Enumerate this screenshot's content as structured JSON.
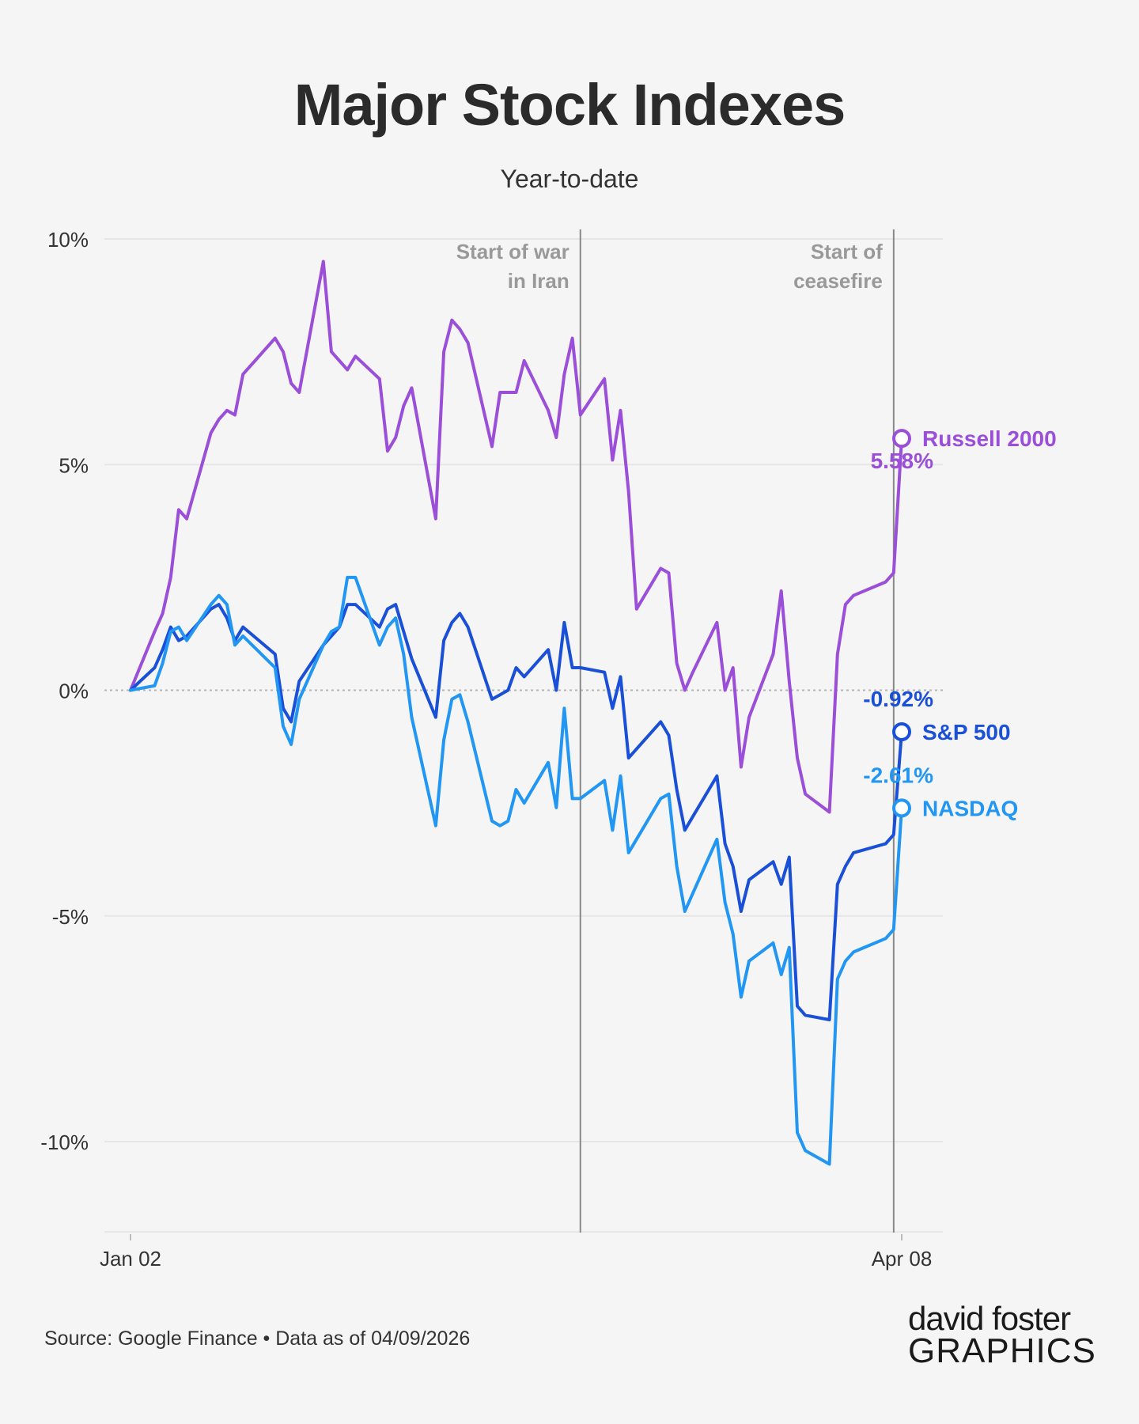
{
  "title": "Major Stock Indexes",
  "subtitle": "Year-to-date",
  "source": "Source: Google Finance • Data as of 04/09/2026",
  "logo": {
    "line1": "david foster",
    "line2": "GRAPHICS"
  },
  "colors": {
    "russell": "#9b4fd9",
    "sp500": "#1a4fd8",
    "nasdaq": "#2196f3",
    "annotation": "#888888",
    "grid": "#e6e6e6"
  },
  "chart_data": {
    "type": "line",
    "title": "Major Stock Indexes",
    "subtitle": "Year-to-date",
    "y_unit": "%",
    "ylim": [
      -12,
      10
    ],
    "y_ticks": [
      {
        "value": 10,
        "label": "10%"
      },
      {
        "value": 5,
        "label": "5%"
      },
      {
        "value": 0,
        "label": "0%"
      },
      {
        "value": -5,
        "label": "-5%"
      },
      {
        "value": -10,
        "label": "-10%"
      }
    ],
    "x_tick_labels": [
      {
        "date": "2026-01-02",
        "label": "Jan 02"
      },
      {
        "date": "2026-04-08",
        "label": "Apr 08"
      }
    ],
    "xlim": [
      "2026-01-02",
      "2026-04-08"
    ],
    "annotations": [
      {
        "date": "2026-02-27",
        "label_lines": [
          "Start of war",
          "in Iran"
        ]
      },
      {
        "date": "2026-04-07",
        "label_lines": [
          "Start of",
          "ceasefire"
        ]
      }
    ],
    "series": [
      {
        "name": "Russell 2000",
        "color": "#9b4fd9",
        "end_label": "5.58%",
        "points": [
          [
            "2026-01-02",
            0.0
          ],
          [
            "2026-01-05",
            1.3
          ],
          [
            "2026-01-06",
            1.7
          ],
          [
            "2026-01-07",
            2.5
          ],
          [
            "2026-01-08",
            4.0
          ],
          [
            "2026-01-09",
            3.8
          ],
          [
            "2026-01-12",
            5.7
          ],
          [
            "2026-01-13",
            6.0
          ],
          [
            "2026-01-14",
            6.2
          ],
          [
            "2026-01-15",
            6.1
          ],
          [
            "2026-01-16",
            7.0
          ],
          [
            "2026-01-20",
            7.8
          ],
          [
            "2026-01-21",
            7.5
          ],
          [
            "2026-01-22",
            6.8
          ],
          [
            "2026-01-23",
            6.6
          ],
          [
            "2026-01-26",
            9.5
          ],
          [
            "2026-01-27",
            7.5
          ],
          [
            "2026-01-28",
            7.3
          ],
          [
            "2026-01-29",
            7.1
          ],
          [
            "2026-01-30",
            7.4
          ],
          [
            "2026-02-02",
            6.9
          ],
          [
            "2026-02-03",
            5.3
          ],
          [
            "2026-02-04",
            5.6
          ],
          [
            "2026-02-05",
            6.3
          ],
          [
            "2026-02-06",
            6.7
          ],
          [
            "2026-02-09",
            3.8
          ],
          [
            "2026-02-10",
            7.5
          ],
          [
            "2026-02-11",
            8.2
          ],
          [
            "2026-02-12",
            8.0
          ],
          [
            "2026-02-13",
            7.7
          ],
          [
            "2026-02-16",
            5.4
          ],
          [
            "2026-02-17",
            6.6
          ],
          [
            "2026-02-18",
            6.6
          ],
          [
            "2026-02-19",
            6.6
          ],
          [
            "2026-02-20",
            7.3
          ],
          [
            "2026-02-23",
            6.2
          ],
          [
            "2026-02-24",
            5.6
          ],
          [
            "2026-02-25",
            7.0
          ],
          [
            "2026-02-26",
            7.8
          ],
          [
            "2026-02-27",
            6.1
          ],
          [
            "2026-03-02",
            6.9
          ],
          [
            "2026-03-03",
            5.1
          ],
          [
            "2026-03-04",
            6.2
          ],
          [
            "2026-03-05",
            4.4
          ],
          [
            "2026-03-06",
            1.8
          ],
          [
            "2026-03-09",
            2.7
          ],
          [
            "2026-03-10",
            2.6
          ],
          [
            "2026-03-11",
            0.6
          ],
          [
            "2026-03-12",
            0.0
          ],
          [
            "2026-03-13",
            0.4
          ],
          [
            "2026-03-16",
            1.5
          ],
          [
            "2026-03-17",
            0.0
          ],
          [
            "2026-03-18",
            0.5
          ],
          [
            "2026-03-19",
            -1.7
          ],
          [
            "2026-03-20",
            -0.6
          ],
          [
            "2026-03-23",
            0.8
          ],
          [
            "2026-03-24",
            2.2
          ],
          [
            "2026-03-25",
            0.2
          ],
          [
            "2026-03-26",
            -1.5
          ],
          [
            "2026-03-27",
            -2.3
          ],
          [
            "2026-03-30",
            -2.7
          ],
          [
            "2026-03-31",
            0.8
          ],
          [
            "2026-04-01",
            1.9
          ],
          [
            "2026-04-02",
            2.1
          ],
          [
            "2026-04-06",
            2.4
          ],
          [
            "2026-04-07",
            2.6
          ],
          [
            "2026-04-08",
            5.58
          ]
        ]
      },
      {
        "name": "S&P 500",
        "color": "#1a4fd8",
        "end_label": "-0.92%",
        "points": [
          [
            "2026-01-02",
            0.0
          ],
          [
            "2026-01-05",
            0.5
          ],
          [
            "2026-01-06",
            0.9
          ],
          [
            "2026-01-07",
            1.4
          ],
          [
            "2026-01-08",
            1.1
          ],
          [
            "2026-01-09",
            1.2
          ],
          [
            "2026-01-12",
            1.8
          ],
          [
            "2026-01-13",
            1.9
          ],
          [
            "2026-01-14",
            1.6
          ],
          [
            "2026-01-15",
            1.1
          ],
          [
            "2026-01-16",
            1.4
          ],
          [
            "2026-01-20",
            0.8
          ],
          [
            "2026-01-21",
            -0.4
          ],
          [
            "2026-01-22",
            -0.7
          ],
          [
            "2026-01-23",
            0.2
          ],
          [
            "2026-01-26",
            1.0
          ],
          [
            "2026-01-27",
            1.2
          ],
          [
            "2026-01-28",
            1.4
          ],
          [
            "2026-01-29",
            1.9
          ],
          [
            "2026-01-30",
            1.9
          ],
          [
            "2026-02-02",
            1.4
          ],
          [
            "2026-02-03",
            1.8
          ],
          [
            "2026-02-04",
            1.9
          ],
          [
            "2026-02-05",
            1.3
          ],
          [
            "2026-02-06",
            0.7
          ],
          [
            "2026-02-09",
            -0.6
          ],
          [
            "2026-02-10",
            1.1
          ],
          [
            "2026-02-11",
            1.5
          ],
          [
            "2026-02-12",
            1.7
          ],
          [
            "2026-02-13",
            1.4
          ],
          [
            "2026-02-16",
            -0.2
          ],
          [
            "2026-02-17",
            -0.1
          ],
          [
            "2026-02-18",
            0.0
          ],
          [
            "2026-02-19",
            0.5
          ],
          [
            "2026-02-20",
            0.3
          ],
          [
            "2026-02-23",
            0.9
          ],
          [
            "2026-02-24",
            0.0
          ],
          [
            "2026-02-25",
            1.5
          ],
          [
            "2026-02-26",
            0.5
          ],
          [
            "2026-02-27",
            0.5
          ],
          [
            "2026-03-02",
            0.4
          ],
          [
            "2026-03-03",
            -0.4
          ],
          [
            "2026-03-04",
            0.3
          ],
          [
            "2026-03-05",
            -1.5
          ],
          [
            "2026-03-06",
            -1.3
          ],
          [
            "2026-03-09",
            -0.7
          ],
          [
            "2026-03-10",
            -1.0
          ],
          [
            "2026-03-11",
            -2.2
          ],
          [
            "2026-03-12",
            -3.1
          ],
          [
            "2026-03-13",
            -2.8
          ],
          [
            "2026-03-16",
            -1.9
          ],
          [
            "2026-03-17",
            -3.4
          ],
          [
            "2026-03-18",
            -3.9
          ],
          [
            "2026-03-19",
            -4.9
          ],
          [
            "2026-03-20",
            -4.2
          ],
          [
            "2026-03-23",
            -3.8
          ],
          [
            "2026-03-24",
            -4.3
          ],
          [
            "2026-03-25",
            -3.7
          ],
          [
            "2026-03-26",
            -7.0
          ],
          [
            "2026-03-27",
            -7.2
          ],
          [
            "2026-03-30",
            -7.3
          ],
          [
            "2026-03-31",
            -4.3
          ],
          [
            "2026-04-01",
            -3.9
          ],
          [
            "2026-04-02",
            -3.6
          ],
          [
            "2026-04-06",
            -3.4
          ],
          [
            "2026-04-07",
            -3.2
          ],
          [
            "2026-04-08",
            -0.92
          ]
        ]
      },
      {
        "name": "NASDAQ",
        "color": "#2196f3",
        "end_label": "-2.61%",
        "points": [
          [
            "2026-01-02",
            0.0
          ],
          [
            "2026-01-05",
            0.1
          ],
          [
            "2026-01-06",
            0.6
          ],
          [
            "2026-01-07",
            1.3
          ],
          [
            "2026-01-08",
            1.4
          ],
          [
            "2026-01-09",
            1.1
          ],
          [
            "2026-01-12",
            1.9
          ],
          [
            "2026-01-13",
            2.1
          ],
          [
            "2026-01-14",
            1.9
          ],
          [
            "2026-01-15",
            1.0
          ],
          [
            "2026-01-16",
            1.2
          ],
          [
            "2026-01-20",
            0.5
          ],
          [
            "2026-01-21",
            -0.8
          ],
          [
            "2026-01-22",
            -1.2
          ],
          [
            "2026-01-23",
            -0.2
          ],
          [
            "2026-01-26",
            1.0
          ],
          [
            "2026-01-27",
            1.3
          ],
          [
            "2026-01-28",
            1.4
          ],
          [
            "2026-01-29",
            2.5
          ],
          [
            "2026-01-30",
            2.5
          ],
          [
            "2026-02-02",
            1.0
          ],
          [
            "2026-02-03",
            1.4
          ],
          [
            "2026-02-04",
            1.6
          ],
          [
            "2026-02-05",
            0.8
          ],
          [
            "2026-02-06",
            -0.6
          ],
          [
            "2026-02-09",
            -3.0
          ],
          [
            "2026-02-10",
            -1.1
          ],
          [
            "2026-02-11",
            -0.2
          ],
          [
            "2026-02-12",
            -0.1
          ],
          [
            "2026-02-13",
            -0.7
          ],
          [
            "2026-02-16",
            -2.9
          ],
          [
            "2026-02-17",
            -3.0
          ],
          [
            "2026-02-18",
            -2.9
          ],
          [
            "2026-02-19",
            -2.2
          ],
          [
            "2026-02-20",
            -2.5
          ],
          [
            "2026-02-23",
            -1.6
          ],
          [
            "2026-02-24",
            -2.6
          ],
          [
            "2026-02-25",
            -0.4
          ],
          [
            "2026-02-26",
            -2.4
          ],
          [
            "2026-02-27",
            -2.4
          ],
          [
            "2026-03-02",
            -2.0
          ],
          [
            "2026-03-03",
            -3.1
          ],
          [
            "2026-03-04",
            -1.9
          ],
          [
            "2026-03-05",
            -3.6
          ],
          [
            "2026-03-06",
            -3.3
          ],
          [
            "2026-03-09",
            -2.4
          ],
          [
            "2026-03-10",
            -2.3
          ],
          [
            "2026-03-11",
            -3.9
          ],
          [
            "2026-03-12",
            -4.9
          ],
          [
            "2026-03-13",
            -4.5
          ],
          [
            "2026-03-16",
            -3.3
          ],
          [
            "2026-03-17",
            -4.7
          ],
          [
            "2026-03-18",
            -5.4
          ],
          [
            "2026-03-19",
            -6.8
          ],
          [
            "2026-03-20",
            -6.0
          ],
          [
            "2026-03-23",
            -5.6
          ],
          [
            "2026-03-24",
            -6.3
          ],
          [
            "2026-03-25",
            -5.7
          ],
          [
            "2026-03-26",
            -9.8
          ],
          [
            "2026-03-27",
            -10.2
          ],
          [
            "2026-03-30",
            -10.5
          ],
          [
            "2026-03-31",
            -6.4
          ],
          [
            "2026-04-01",
            -6.0
          ],
          [
            "2026-04-02",
            -5.8
          ],
          [
            "2026-04-06",
            -5.5
          ],
          [
            "2026-04-07",
            -5.3
          ],
          [
            "2026-04-08",
            -2.61
          ]
        ]
      }
    ]
  }
}
